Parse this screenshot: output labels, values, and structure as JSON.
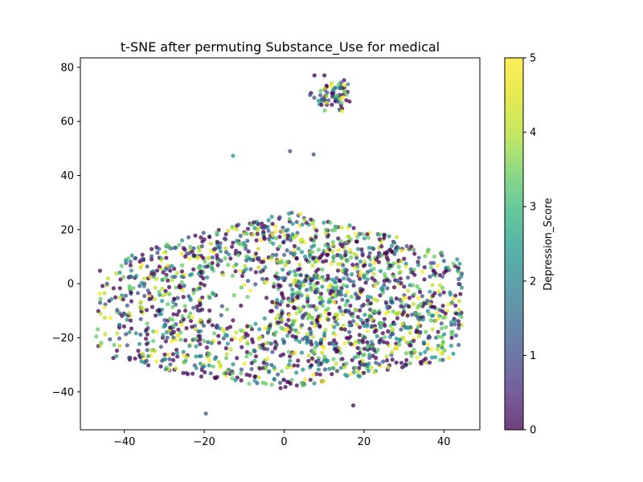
{
  "chart_data": {
    "type": "scatter",
    "title": "t-SNE after permuting Substance_Use for medical",
    "xlabel": "",
    "ylabel": "",
    "xlim": [
      -51,
      49
    ],
    "ylim": [
      -54,
      83.5
    ],
    "xticks": [
      -40,
      -20,
      0,
      20,
      40
    ],
    "yticks": [
      -40,
      -20,
      0,
      20,
      40,
      60,
      80
    ],
    "xtick_labels": [
      "−40",
      "−20",
      "0",
      "20",
      "40"
    ],
    "ytick_labels": [
      "−40",
      "−20",
      "0",
      "20",
      "40",
      "60",
      "80"
    ],
    "grid": false,
    "colormap": "viridis",
    "point_alpha": 0.75,
    "colorbar": {
      "label": "Depression_Score",
      "range": [
        0,
        5
      ],
      "ticks": [
        0,
        1,
        2,
        3,
        4,
        5
      ],
      "tick_labels": [
        "0",
        "1",
        "2",
        "3",
        "4",
        "5"
      ]
    },
    "point_clusters": [
      {
        "region": "small upper cluster",
        "x_range": [
          6,
          18
        ],
        "y_range": [
          63,
          77
        ],
        "approx_count": 70
      },
      {
        "region": "main cloud",
        "x_range": [
          -48,
          44
        ],
        "y_range": [
          -49,
          49
        ],
        "approx_count": 1900
      }
    ],
    "sample_points": [
      {
        "x": 10.2,
        "y": 72.1,
        "value": 4
      },
      {
        "x": 13.5,
        "y": 67.3,
        "value": 1
      },
      {
        "x": 14.5,
        "y": 63.8,
        "value": 5
      },
      {
        "x": -46.1,
        "y": 4.8,
        "value": 0
      },
      {
        "x": -47.0,
        "y": -19.5,
        "value": 3
      },
      {
        "x": 44.0,
        "y": -0.2,
        "value": 1
      },
      {
        "x": 40.5,
        "y": 5.9,
        "value": 2
      },
      {
        "x": -19.6,
        "y": -48.0,
        "value": 1
      },
      {
        "x": 17.3,
        "y": -45.0,
        "value": 0
      },
      {
        "x": 1.5,
        "y": 49.0,
        "value": 1
      },
      {
        "x": -12.8,
        "y": 47.3,
        "value": 2
      },
      {
        "x": 7.4,
        "y": 47.8,
        "value": 1
      }
    ]
  }
}
